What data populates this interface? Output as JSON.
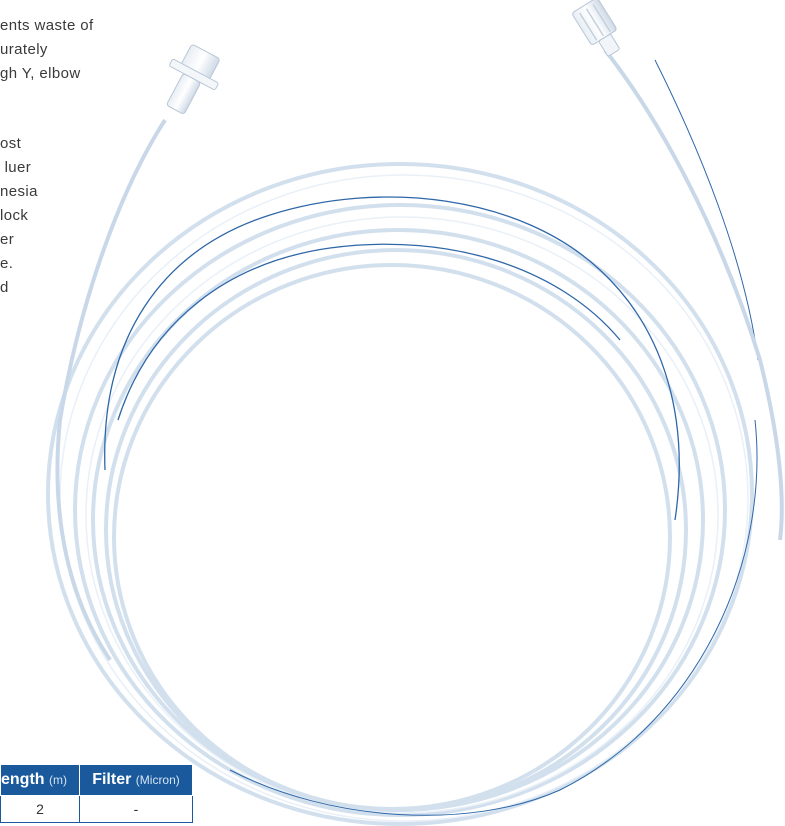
{
  "description": {
    "paragraph_1_lines": [
      "ents waste of",
      "urately",
      "gh Y, elbow"
    ],
    "paragraph_2_lines": [
      "ost",
      " luer",
      "nesia",
      "lock",
      "er",
      "e.",
      "d"
    ]
  },
  "spec_table": {
    "headers": [
      {
        "label": "ength",
        "unit": "(m)"
      },
      {
        "label": "Filter",
        "unit": "(Micron)"
      }
    ],
    "rows": [
      [
        "2",
        "-"
      ]
    ]
  },
  "colors": {
    "accent_blue": "#1a5a9c",
    "tubing_stripe": "#2e67a8",
    "tubing_body": "#d2e0ee"
  }
}
